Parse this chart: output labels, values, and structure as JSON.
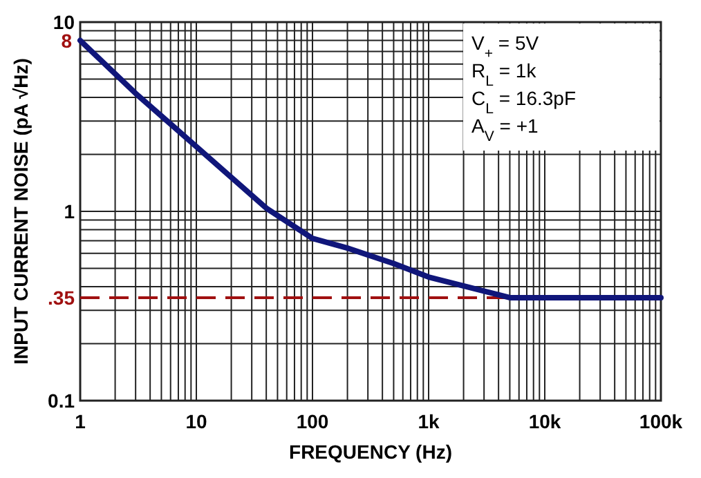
{
  "chart_data": {
    "type": "line",
    "xlabel": "FREQUENCY (Hz)",
    "ylabel": "INPUT CURRENT NOISE (pA √Hz)",
    "log": "xy",
    "xlim": [
      1,
      100000
    ],
    "xticks": [
      1,
      10,
      100,
      {
        "value": 1000,
        "label": "1k"
      },
      {
        "value": 10000,
        "label": "10k"
      },
      {
        "value": 100000,
        "label": "100k"
      }
    ],
    "ylim": [
      0.1,
      10
    ],
    "yticks": [
      0.1,
      1,
      10
    ],
    "grid": true,
    "line_style": "solid",
    "series": [
      {
        "color": "#10167a",
        "x": [
          1,
          3,
          10,
          40,
          100,
          200,
          500,
          1000,
          5000,
          100000
        ],
        "values": [
          8,
          4.2,
          2.2,
          1.04,
          0.72,
          0.64,
          0.53,
          0.45,
          0.35,
          0.35
        ]
      }
    ],
    "ref_lines": [
      {
        "axis": "y",
        "value": 0.35,
        "label": ".35",
        "color": "#a01010",
        "line_style": "dashed"
      }
    ],
    "annotations": [
      {
        "text": "8",
        "x": 1,
        "y": 8
      },
      "V$_{+}$ = 5V",
      "R$_{L}$ = 1k",
      "C$_{L}$ = 16.3pF",
      "A$_{V}$ = +1"
    ]
  }
}
